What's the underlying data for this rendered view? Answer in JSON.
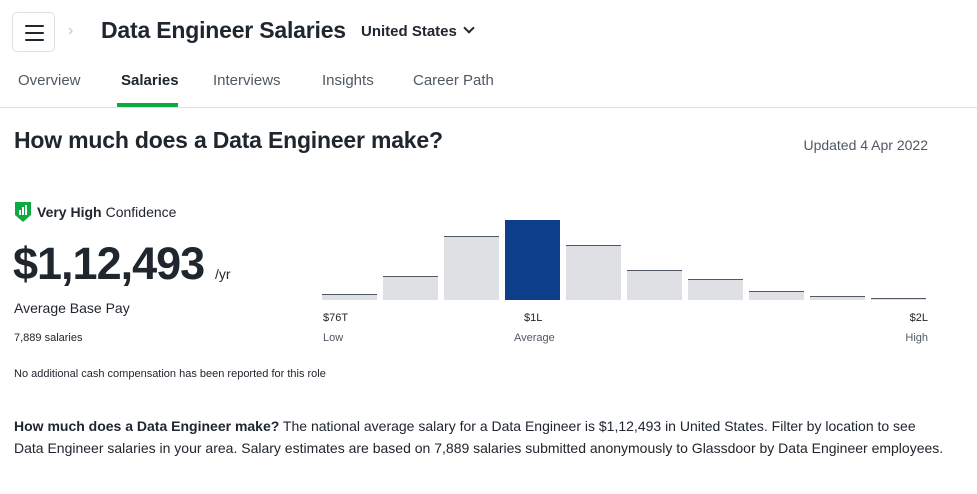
{
  "header": {
    "title": "Data Engineer Salaries",
    "location": "United States"
  },
  "tabs": [
    {
      "label": "Overview",
      "active": false
    },
    {
      "label": "Salaries",
      "active": true
    },
    {
      "label": "Interviews",
      "active": false
    },
    {
      "label": "Insights",
      "active": false
    },
    {
      "label": "Career Path",
      "active": false
    }
  ],
  "main": {
    "heading": "How much does a Data Engineer make?",
    "updated": "Updated 4 Apr 2022",
    "confidence_strong": "Very High",
    "confidence_rest": "Confidence",
    "pay_value": "$1,12,493",
    "pay_unit": "/yr",
    "pay_label": "Average Base Pay",
    "salary_count": "7,889 salaries",
    "no_cash_note": "No additional cash compensation has been reported for this role"
  },
  "chart_data": {
    "type": "bar",
    "values": [
      0.07,
      0.3,
      0.8,
      1.0,
      0.69,
      0.38,
      0.26,
      0.11,
      0.05,
      0.02
    ],
    "highlight_index": 3,
    "ticks": [
      {
        "label": "$76T",
        "sub": "Low"
      },
      {
        "label": "$1L",
        "sub": "Average"
      },
      {
        "label": "$2L",
        "sub": "High"
      }
    ]
  },
  "description": {
    "lead": "How much does a Data Engineer make?",
    "body": " The national average salary for a Data Engineer is $1,12,493 in United States. Filter by location to see Data Engineer salaries in your area. Salary estimates are based on 7,889 salaries submitted anonymously to Glassdoor by Data Engineer employees."
  },
  "colors": {
    "accent_green": "#0caa41",
    "highlight_bar": "#0d3f8a",
    "bar": "#dee0e3"
  }
}
